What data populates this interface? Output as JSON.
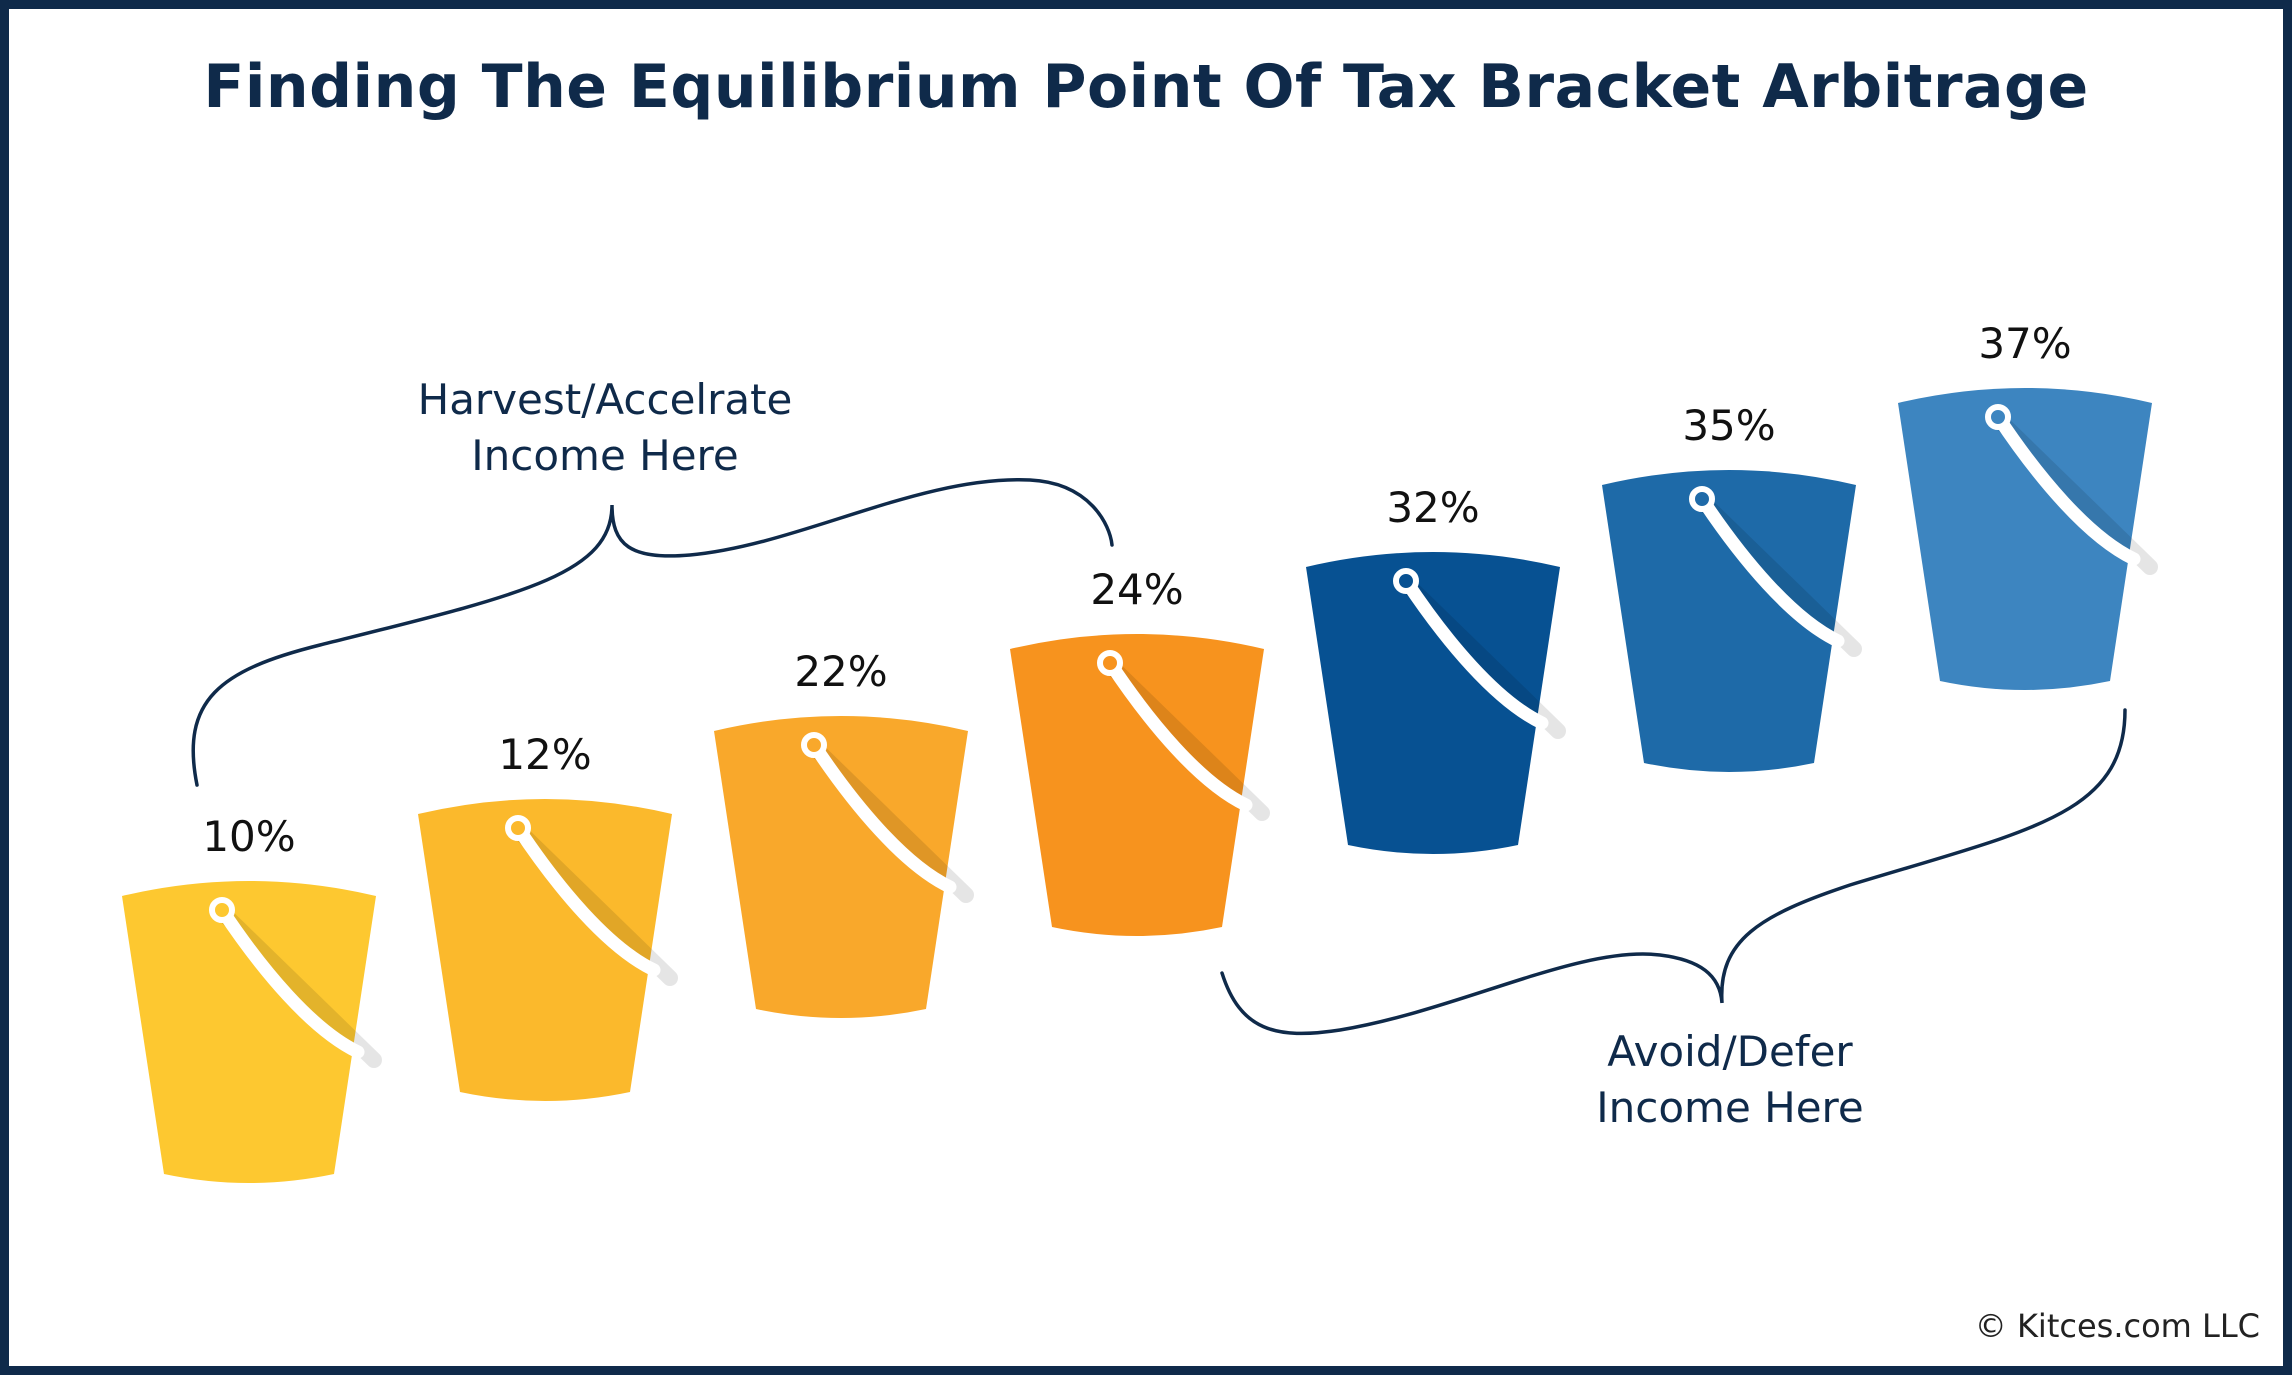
{
  "title": "Finding The Equilibrium Point Of Tax Bracket Arbitrage",
  "brackets": [
    {
      "rate": "10%",
      "color": "#fdc830"
    },
    {
      "rate": "12%",
      "color": "#fbb92c"
    },
    {
      "rate": "22%",
      "color": "#f9a82b"
    },
    {
      "rate": "24%",
      "color": "#f7931e"
    },
    {
      "rate": "32%",
      "color": "#075192"
    },
    {
      "rate": "35%",
      "color": "#1e6aa8"
    },
    {
      "rate": "37%",
      "color": "#3d85c0"
    }
  ],
  "harvest_label": {
    "line1": "Harvest/Accelrate",
    "line2": "Income Here"
  },
  "avoid_label": {
    "line1": "Avoid/Defer",
    "line2": "Income Here"
  },
  "copyright": "© Kitces.com LLC",
  "colors": {
    "frame": "#0f2a4a",
    "text": "#0f2a4a",
    "brace": "#0f2a4a",
    "handle": "#ffffff"
  }
}
